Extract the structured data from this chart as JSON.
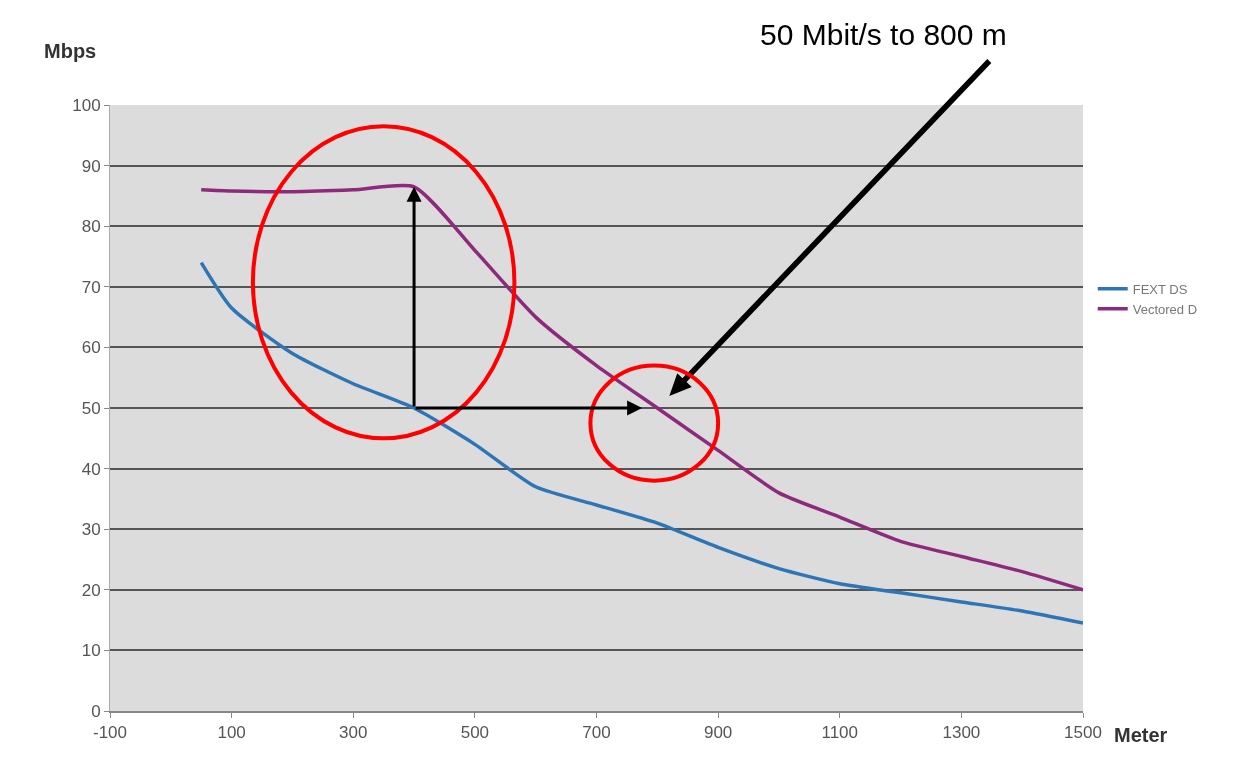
{
  "chart_data": {
    "type": "line",
    "xlabel": "Meter",
    "ylabel": "Mbps",
    "x": [
      50,
      100,
      200,
      300,
      400,
      500,
      600,
      700,
      800,
      900,
      1000,
      1100,
      1200,
      1300,
      1400,
      1500
    ],
    "series": [
      {
        "name": "FEXT DS",
        "color": "#2e75b6",
        "values": [
          74,
          66.5,
          59,
          54,
          50,
          44,
          37,
          34,
          31,
          27,
          23.5,
          21,
          19.5,
          18,
          16.5,
          14.5
        ]
      },
      {
        "name": "Vectored D",
        "color": "#8e2a7e",
        "values": [
          86,
          85.8,
          85.7,
          86,
          86.5,
          76,
          65,
          57,
          50,
          43,
          36,
          32,
          28,
          25.5,
          23,
          20
        ]
      }
    ],
    "xlim": [
      -100,
      1500
    ],
    "xticks": [
      -100,
      100,
      300,
      500,
      700,
      900,
      1100,
      1300,
      1500
    ],
    "ylim": [
      0,
      100
    ],
    "yticks": [
      0,
      10,
      20,
      30,
      40,
      50,
      60,
      70,
      80,
      90,
      100
    ],
    "grid": "y",
    "legend": "right",
    "marker": "none",
    "line_style": "solid",
    "annotations": [
      "50 Mbit/s to 800 m"
    ]
  }
}
